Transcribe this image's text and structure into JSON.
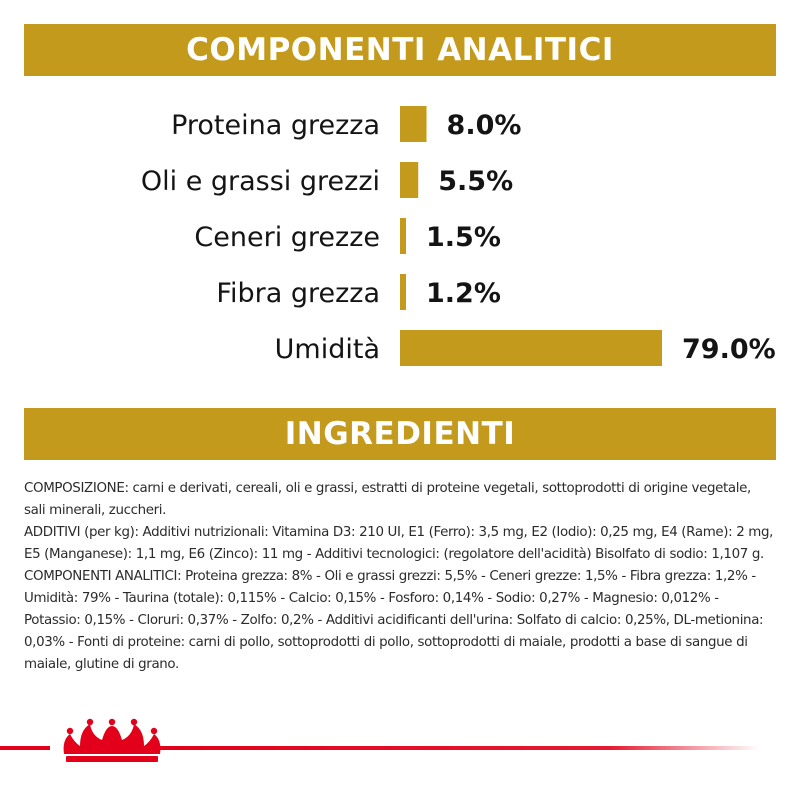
{
  "colors": {
    "gold": "#C49A1C",
    "red": "#E2001A",
    "text": "#141414"
  },
  "banners": {
    "analytic_title": "COMPONENTI ANALITICI",
    "ingredients_title": "INGREDIENTI"
  },
  "chart_data": {
    "type": "bar",
    "orientation": "horizontal",
    "title": "",
    "xlabel": "",
    "ylabel": "",
    "xlim": [
      0,
      79
    ],
    "categories": [
      "Proteina grezza",
      "Oli e grassi grezzi",
      "Ceneri grezze",
      "Fibra grezza",
      "Umidità"
    ],
    "values": [
      8.0,
      5.5,
      1.5,
      1.2,
      79.0
    ],
    "value_labels": [
      "8.0%",
      "5.5%",
      "1.5%",
      "1.2%",
      "79.0%"
    ],
    "grid": false,
    "legend": "none"
  },
  "ingredients": {
    "composizione": "COMPOSIZIONE: carni e derivati, cereali, oli e grassi, estratti di proteine vegetali, sottoprodotti di origine vegetale, sali minerali, zuccheri.",
    "additivi": "ADDITIVI (per kg): Additivi nutrizionali: Vitamina D3: 210 UI, E1 (Ferro): 3,5 mg, E2 (Iodio): 0,25 mg, E4 (Rame): 2 mg, E5 (Manganese): 1,1 mg, E6 (Zinco): 11 mg - Additivi tecnologici: (regolatore dell'acidità) Bisolfato di sodio: 1,107 g.",
    "componenti": "COMPONENTI ANALITICI: Proteina grezza: 8% - Oli e grassi grezzi: 5,5% - Ceneri grezze: 1,5% - Fibra grezza: 1,2% - Umidità: 79% - Taurina (totale): 0,115% - Calcio: 0,15% - Fosforo: 0,14% - Sodio: 0,27% - Magnesio: 0,012% - Potassio: 0,15% - Cloruri: 0,37% - Zolfo: 0,2% - Additivi acidificanti dell'urina: Solfato di calcio: 0,25%, DL-metionina: 0,03% - Fonti di proteine: carni di pollo, sottoprodotti di pollo, sottoprodotti di maiale, prodotti a base di sangue di maiale, glutine di grano."
  },
  "footer": {
    "logo_icon": "crown-icon"
  }
}
